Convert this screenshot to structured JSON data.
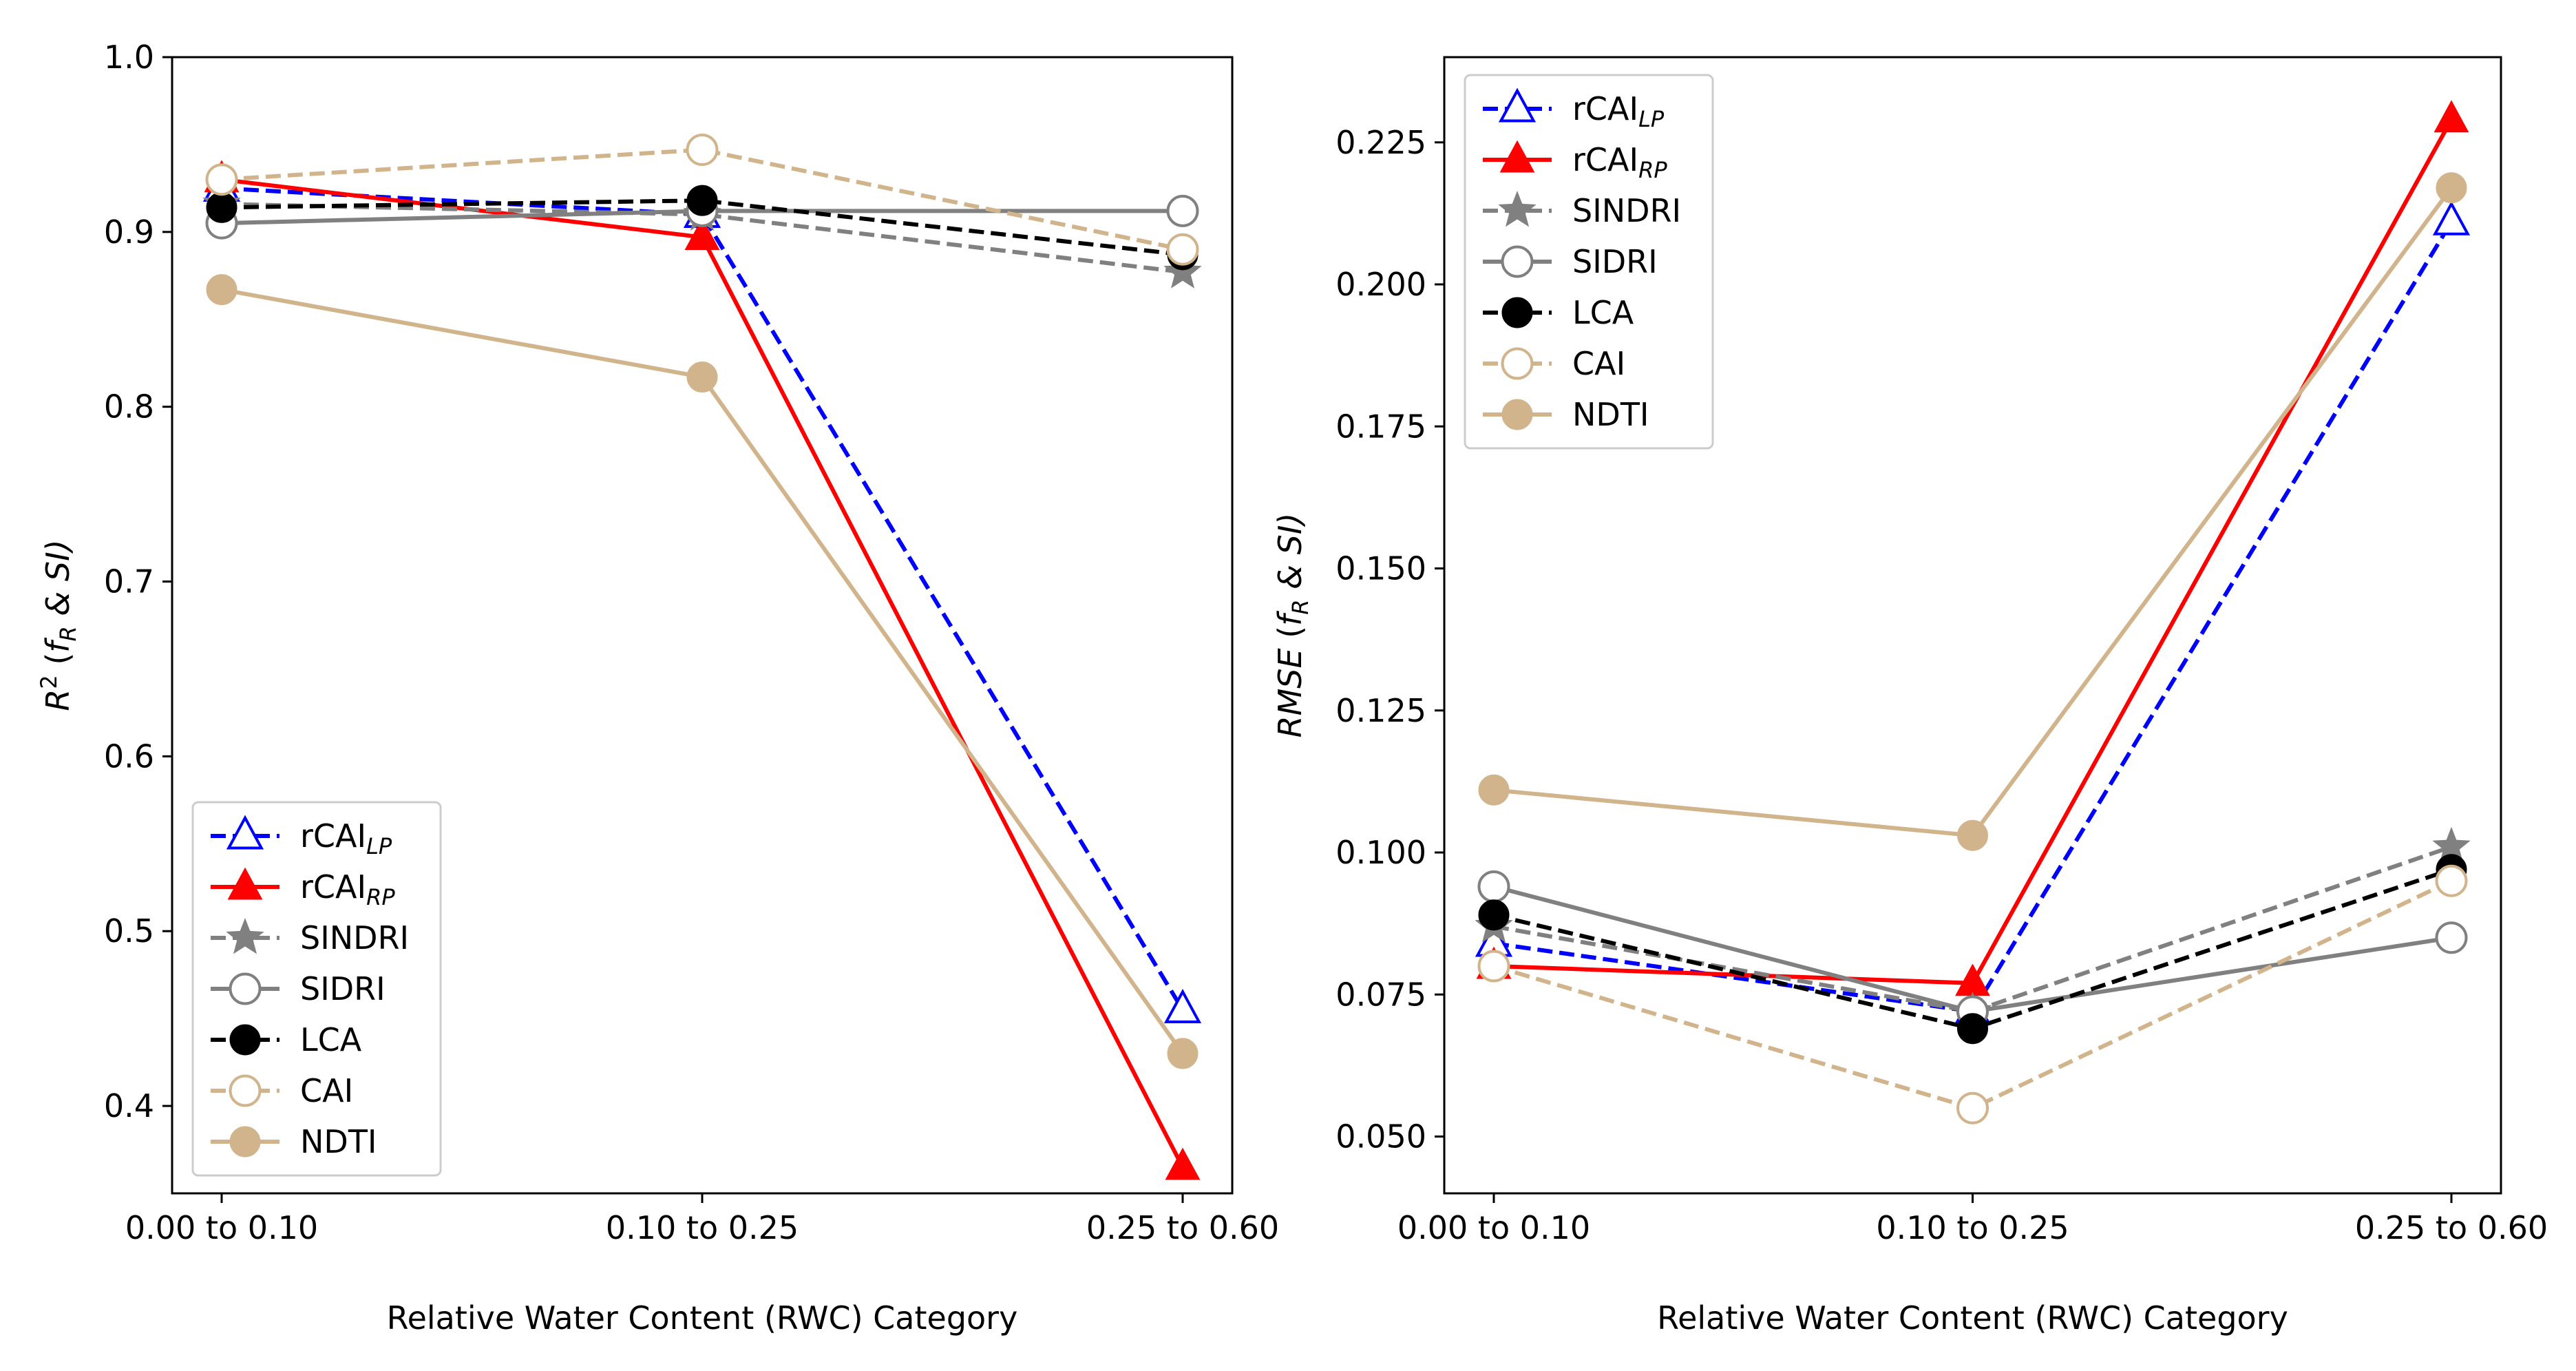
{
  "chart_data": [
    {
      "type": "line",
      "panel": "left",
      "categories": [
        "0.00 to 0.10",
        "0.10 to 0.25",
        "0.25 to 0.60"
      ],
      "xlabel": "Relative Water Content (RWC) Category",
      "ylabel": "R² (f_R & SI)",
      "ylabel_parts": {
        "base": "R",
        "sup": "2",
        "open": " (",
        "f": "f",
        "sub": "R",
        "rest": " & SI)"
      },
      "ylim": [
        0.35,
        1.0
      ],
      "yticks": [
        0.4,
        0.5,
        0.6,
        0.7,
        0.8,
        0.9,
        1.0
      ],
      "ytick_labels": [
        "0.4",
        "0.5",
        "0.6",
        "0.7",
        "0.8",
        "0.9",
        "1.0"
      ],
      "legend_position": "lower-left",
      "series": [
        {
          "name": "rCAI",
          "sub": "LP",
          "values": [
            0.925,
            0.91,
            0.455
          ],
          "color": "#0000ff",
          "dash": "dashed",
          "marker": "triangle-open"
        },
        {
          "name": "rCAI",
          "sub": "RP",
          "values": [
            0.93,
            0.897,
            0.365
          ],
          "color": "#ff0000",
          "dash": "solid",
          "marker": "triangle-filled"
        },
        {
          "name": "SINDRI",
          "sub": "",
          "values": [
            0.916,
            0.91,
            0.877
          ],
          "color": "#808080",
          "dash": "dashed",
          "marker": "star"
        },
        {
          "name": "SIDRI",
          "sub": "",
          "values": [
            0.905,
            0.912,
            0.912
          ],
          "color": "#808080",
          "dash": "solid",
          "marker": "circle-open"
        },
        {
          "name": "LCA",
          "sub": "",
          "values": [
            0.914,
            0.918,
            0.887
          ],
          "color": "#000000",
          "dash": "dashed",
          "marker": "circle-filled"
        },
        {
          "name": "CAI",
          "sub": "",
          "values": [
            0.93,
            0.947,
            0.89
          ],
          "color": "#d2b48c",
          "dash": "dashed",
          "marker": "circle-open"
        },
        {
          "name": "NDTI",
          "sub": "",
          "values": [
            0.867,
            0.817,
            0.43
          ],
          "color": "#d2b48c",
          "dash": "solid",
          "marker": "circle-filled"
        }
      ]
    },
    {
      "type": "line",
      "panel": "right",
      "categories": [
        "0.00 to 0.10",
        "0.10 to 0.25",
        "0.25 to 0.60"
      ],
      "xlabel": "Relative Water Content (RWC) Category",
      "ylabel": "RMSE (f_R & SI)",
      "ylabel_parts": {
        "base": "RMSE",
        "sup": "",
        "open": " (",
        "f": "f",
        "sub": "R",
        "rest": " & SI)"
      },
      "ylim": [
        0.04,
        0.24
      ],
      "yticks": [
        0.05,
        0.075,
        0.1,
        0.125,
        0.15,
        0.175,
        0.2,
        0.225
      ],
      "ytick_labels": [
        "0.050",
        "0.075",
        "0.100",
        "0.125",
        "0.150",
        "0.175",
        "0.200",
        "0.225"
      ],
      "legend_position": "upper-left",
      "series": [
        {
          "name": "rCAI",
          "sub": "LP",
          "values": [
            0.084,
            0.072,
            0.211
          ],
          "color": "#0000ff",
          "dash": "dashed",
          "marker": "triangle-open"
        },
        {
          "name": "rCAI",
          "sub": "RP",
          "values": [
            0.08,
            0.077,
            0.229
          ],
          "color": "#ff0000",
          "dash": "solid",
          "marker": "triangle-filled"
        },
        {
          "name": "SINDRI",
          "sub": "",
          "values": [
            0.087,
            0.072,
            0.101
          ],
          "color": "#808080",
          "dash": "dashed",
          "marker": "star"
        },
        {
          "name": "SIDRI",
          "sub": "",
          "values": [
            0.094,
            0.072,
            0.085
          ],
          "color": "#808080",
          "dash": "solid",
          "marker": "circle-open"
        },
        {
          "name": "LCA",
          "sub": "",
          "values": [
            0.089,
            0.069,
            0.097
          ],
          "color": "#000000",
          "dash": "dashed",
          "marker": "circle-filled"
        },
        {
          "name": "CAI",
          "sub": "",
          "values": [
            0.08,
            0.055,
            0.095
          ],
          "color": "#d2b48c",
          "dash": "dashed",
          "marker": "circle-open"
        },
        {
          "name": "NDTI",
          "sub": "",
          "values": [
            0.111,
            0.103,
            0.217
          ],
          "color": "#d2b48c",
          "dash": "solid",
          "marker": "circle-filled"
        }
      ]
    }
  ]
}
